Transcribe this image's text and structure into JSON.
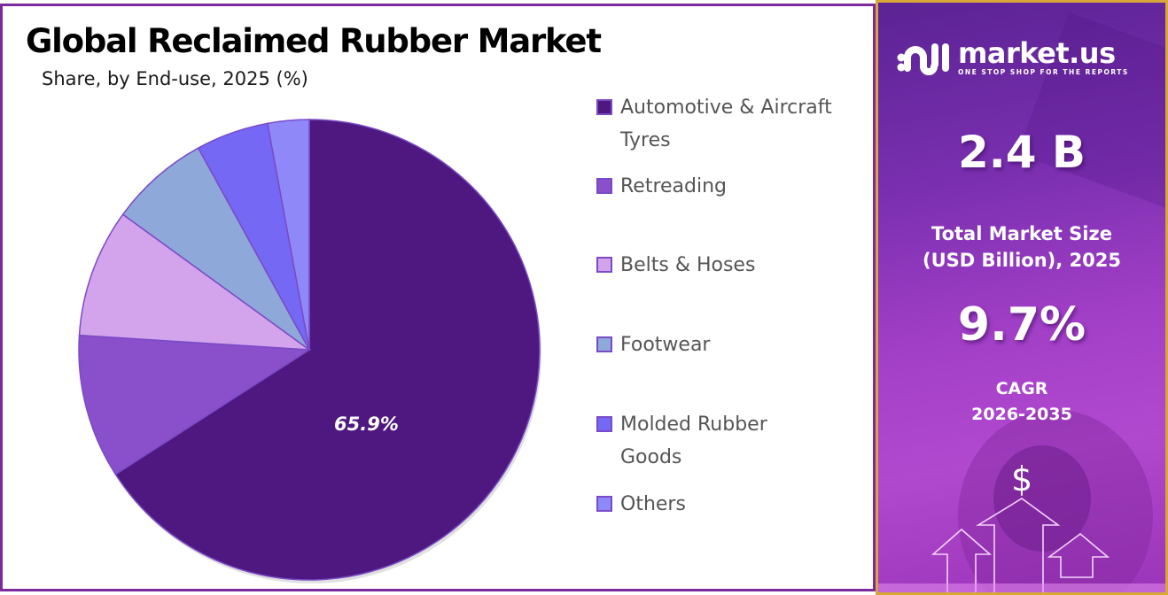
{
  "header": {
    "title": "Global Reclaimed Rubber Market",
    "subtitle": "Share, by End-use, 2025 (%)"
  },
  "chart_data": {
    "type": "pie",
    "title": "Global Reclaimed Rubber Market",
    "subtitle": "Share, by End-use, 2025 (%)",
    "categories": [
      "Automotive & Aircraft Tyres",
      "Retreading",
      "Belts & Hoses",
      "Footwear",
      "Molded Rubber Goods",
      "Others"
    ],
    "values": [
      65.9,
      10.1,
      9.0,
      7.0,
      5.1,
      2.9
    ],
    "colors": [
      "#4e1880",
      "#8a4fca",
      "#d3a4ec",
      "#8ea8da",
      "#7468f4",
      "#8e88f8"
    ],
    "data_labels": [
      {
        "category": "Automotive & Aircraft Tyres",
        "text": "65.9%"
      }
    ],
    "start_angle": "12 o'clock, clockwise",
    "legend_position": "right"
  },
  "legend": {
    "items": [
      {
        "label_line1": "Automotive & Aircraft",
        "label_line2": "Tyres",
        "color": "#4e1880"
      },
      {
        "label_line1": "Retreading",
        "label_line2": "",
        "color": "#8a4fca"
      },
      {
        "label_line1": "Belts & Hoses",
        "label_line2": "",
        "color": "#d3a4ec"
      },
      {
        "label_line1": "Footwear",
        "label_line2": "",
        "color": "#8ea8da"
      },
      {
        "label_line1": "Molded Rubber",
        "label_line2": "Goods",
        "color": "#7468f4"
      },
      {
        "label_line1": "Others",
        "label_line2": "",
        "color": "#8e88f8"
      }
    ]
  },
  "pie_label": "65.9%",
  "side_panel": {
    "brand_name": "market.us",
    "brand_tagline": "ONE STOP SHOP FOR THE REPORTS",
    "market_size_value": "2.4 B",
    "market_size_caption_line1": "Total Market Size",
    "market_size_caption_line2": "(USD Billion), 2025",
    "cagr_value": "9.7%",
    "cagr_caption_line1": "CAGR",
    "cagr_caption_line2": "2026-2035",
    "dollar_symbol": "$"
  },
  "colors": {
    "frame_border": "#7b2a9e",
    "side_border": "#d9a63a",
    "side_bg_top": "#5b2394",
    "side_bg_bottom": "#b149cf"
  }
}
